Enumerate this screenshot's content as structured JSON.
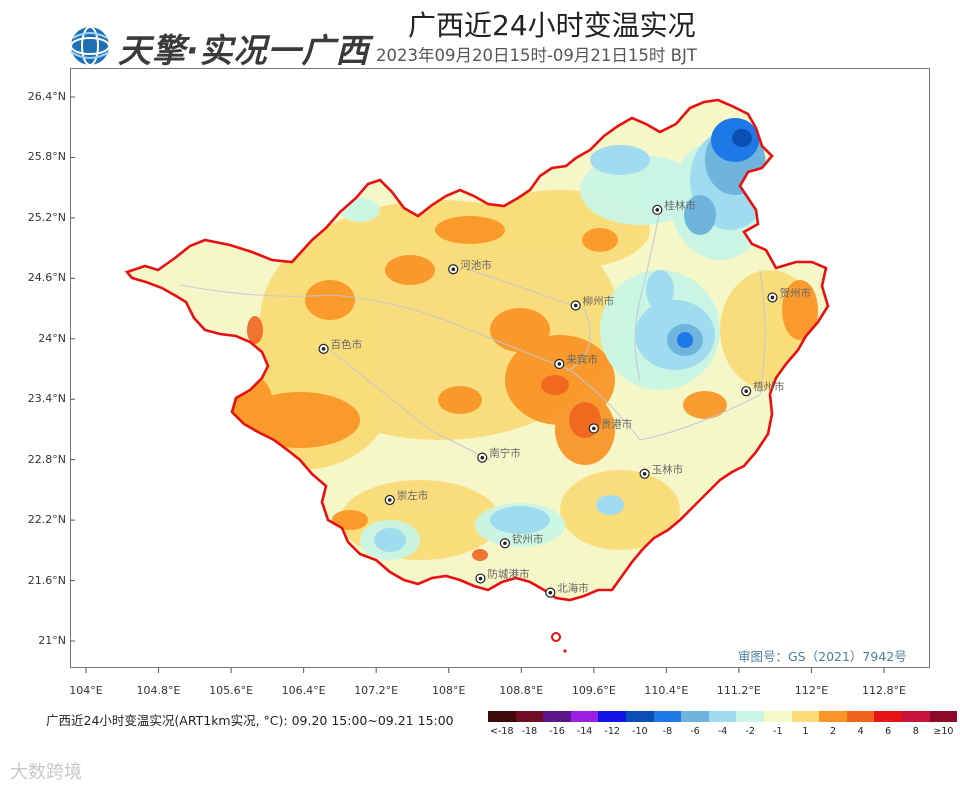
{
  "header": {
    "logo_text": "天擎·实况一广西",
    "title": "广西近24小时变温实况",
    "subtitle": "2023年09月20日15时-09月21日15时 BJT"
  },
  "axes": {
    "lat_labels": [
      "26.4°N",
      "25.8°N",
      "25.2°N",
      "24.6°N",
      "24°N",
      "23.4°N",
      "22.8°N",
      "22.2°N",
      "21.6°N",
      "21°N"
    ],
    "lon_labels": [
      "104°E",
      "104.8°E",
      "105.6°E",
      "106.4°E",
      "107.2°E",
      "108°E",
      "108.8°E",
      "109.6°E",
      "110.4°E",
      "111.2°E",
      "112°E",
      "112.8°E"
    ]
  },
  "cities": [
    {
      "name": "桂林市",
      "lon": 110.3,
      "lat": 25.28
    },
    {
      "name": "河池市",
      "lon": 108.05,
      "lat": 24.69
    },
    {
      "name": "柳州市",
      "lon": 109.4,
      "lat": 24.33
    },
    {
      "name": "贺州市",
      "lon": 111.57,
      "lat": 24.41
    },
    {
      "name": "百色市",
      "lon": 106.62,
      "lat": 23.9
    },
    {
      "name": "来宾市",
      "lon": 109.22,
      "lat": 23.75
    },
    {
      "name": "梧州市",
      "lon": 111.28,
      "lat": 23.48
    },
    {
      "name": "贵港市",
      "lon": 109.6,
      "lat": 23.11
    },
    {
      "name": "南宁市",
      "lon": 108.37,
      "lat": 22.82
    },
    {
      "name": "玉林市",
      "lon": 110.16,
      "lat": 22.66
    },
    {
      "name": "崇左市",
      "lon": 107.35,
      "lat": 22.4
    },
    {
      "name": "钦州市",
      "lon": 108.62,
      "lat": 21.97
    },
    {
      "name": "防城港市",
      "lon": 108.35,
      "lat": 21.62
    },
    {
      "name": "北海市",
      "lon": 109.12,
      "lat": 21.48
    }
  ],
  "review_number": "审图号：GS（2021）7942号",
  "legend": {
    "title": "广西近24小时变温实况(ART1km实况, °C): 09.20 15:00~09.21 15:00",
    "colors": [
      "#3d0a0a",
      "#6e0d24",
      "#5a1587",
      "#9b1fe0",
      "#1414e6",
      "#0a4fb4",
      "#1e78e6",
      "#6eb4dc",
      "#a0dcf0",
      "#c8f5e6",
      "#f5fac8",
      "#fadc78",
      "#fa9628",
      "#f0641e",
      "#e61414",
      "#c8143c",
      "#8c0a28"
    ],
    "labels": [
      "<-18",
      "-18",
      "-16",
      "-14",
      "-12",
      "-10",
      "-8",
      "-6",
      "-4",
      "-2",
      "-1",
      "1",
      "2",
      "4",
      "6",
      "8",
      "≥10"
    ]
  },
  "watermark": "大数跨境"
}
